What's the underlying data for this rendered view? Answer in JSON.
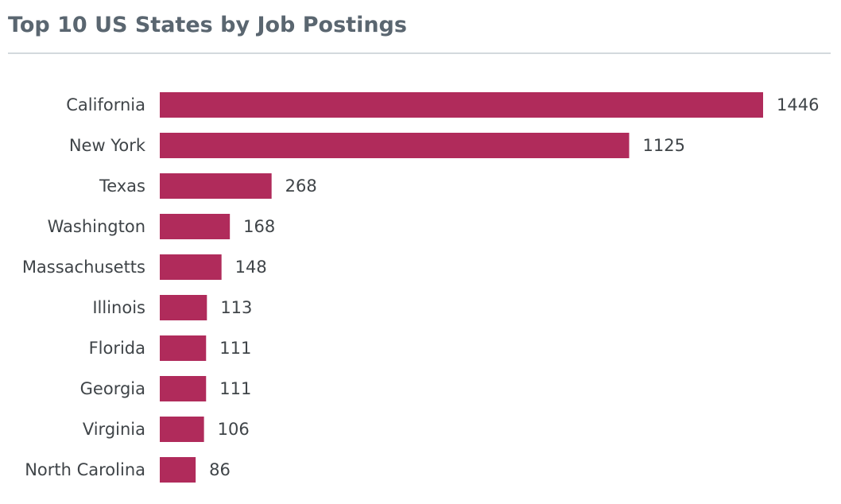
{
  "title": "Top 10 US States by Job Postings",
  "colors": {
    "bar": "#b02b5b",
    "title": "#5a6670",
    "text": "#3f4448",
    "divider": "#d3d9dd"
  },
  "chart_data": {
    "type": "bar",
    "orientation": "horizontal",
    "title": "Top 10 US States by Job Postings",
    "xlabel": "",
    "ylabel": "",
    "grid": false,
    "legend": "none",
    "data_labels": true,
    "xlim": [
      0,
      1446
    ],
    "categories": [
      "California",
      "New York",
      "Texas",
      "Washington",
      "Massachusetts",
      "Illinois",
      "Florida",
      "Georgia",
      "Virginia",
      "North Carolina"
    ],
    "values": [
      1446,
      1125,
      268,
      168,
      148,
      113,
      111,
      111,
      106,
      86
    ]
  }
}
